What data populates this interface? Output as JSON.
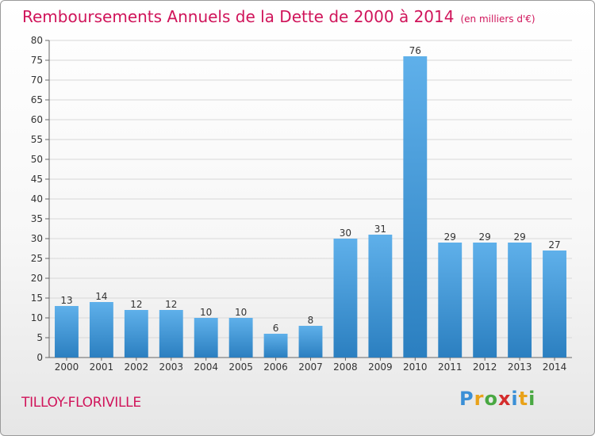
{
  "header": {
    "title": "Remboursements Annuels de la Dette de 2000 à 2014",
    "subtitle": "(en milliers d'€)"
  },
  "footer": {
    "commune": "TILLOY-FLORIVILLE",
    "logo_text": "Proxiti",
    "logo_letters": [
      "P",
      "r",
      "o",
      "x",
      "i",
      "t",
      "i"
    ],
    "logo_colors": [
      "#3a8fd6",
      "#e9a21a",
      "#49a842",
      "#d42c2c",
      "#3a8fd6",
      "#e9a21a",
      "#49a842"
    ]
  },
  "colors": {
    "title": "#d0145a",
    "bar_light": "#5fb0ea",
    "bar_dark": "#2b7fc0",
    "grid": "#d8d8d8",
    "axis": "#666666"
  },
  "chart_data": {
    "type": "bar",
    "categories": [
      "2000",
      "2001",
      "2002",
      "2003",
      "2004",
      "2005",
      "2006",
      "2007",
      "2008",
      "2009",
      "2010",
      "2011",
      "2012",
      "2013",
      "2014"
    ],
    "values": [
      13,
      14,
      12,
      12,
      10,
      10,
      6,
      8,
      30,
      31,
      76,
      29,
      29,
      29,
      27
    ],
    "title": "Remboursements Annuels de la Dette de 2000 à 2014",
    "unit": "(en milliers d'€)",
    "ylim": [
      0,
      80
    ],
    "yticks": [
      0,
      5,
      10,
      15,
      20,
      25,
      30,
      35,
      40,
      45,
      50,
      55,
      60,
      65,
      70,
      75,
      80
    ],
    "grid": true,
    "data_labels": true
  }
}
